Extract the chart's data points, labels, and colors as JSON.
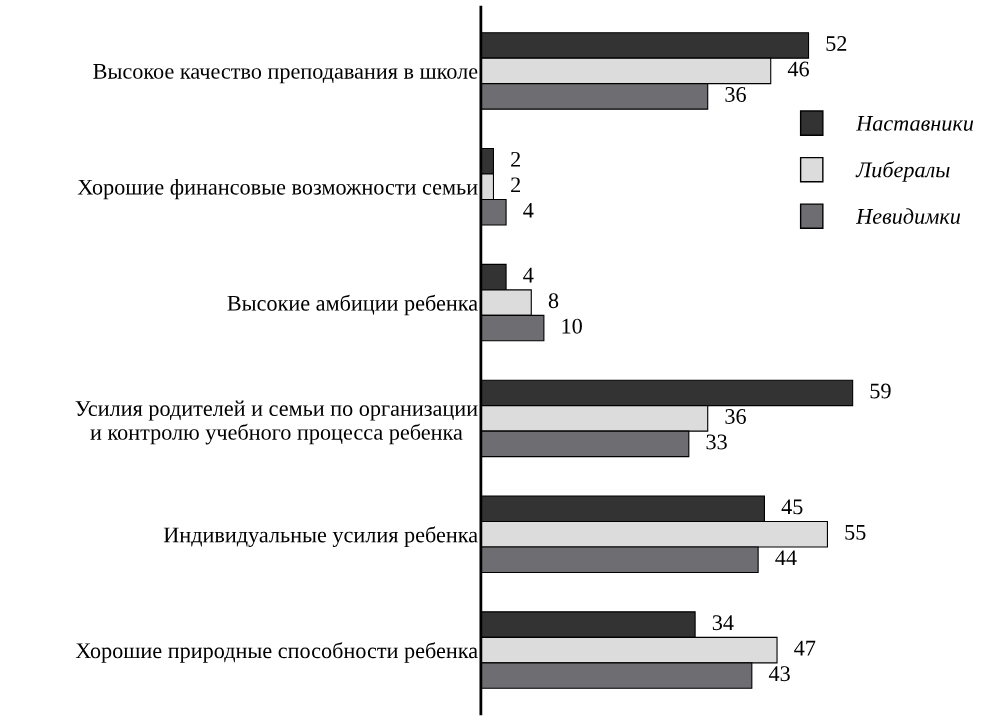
{
  "chart_data": {
    "type": "bar",
    "orientation": "horizontal",
    "data_labels": true,
    "legend": "right",
    "grid": false,
    "categories": [
      "Высокое качество преподавания в школе",
      "Хорошие финансовые возможности семьи",
      "Высокие амбиции ребенка",
      "Усилия родителей и семьи по организации\nи контролю учебного процесса ребенка",
      "Индивидуальные усилия ребенка",
      "Хорошие природные способности ребенка"
    ],
    "series": [
      {
        "name": "Наставники",
        "color": "#333333",
        "values": [
          52,
          2,
          4,
          59,
          45,
          34
        ]
      },
      {
        "name": "Либералы",
        "color": "#dcdcdc",
        "values": [
          46,
          2,
          8,
          36,
          55,
          47
        ]
      },
      {
        "name": "Невидимки",
        "color": "#6e6e72",
        "values": [
          36,
          4,
          10,
          33,
          44,
          43
        ]
      }
    ]
  }
}
